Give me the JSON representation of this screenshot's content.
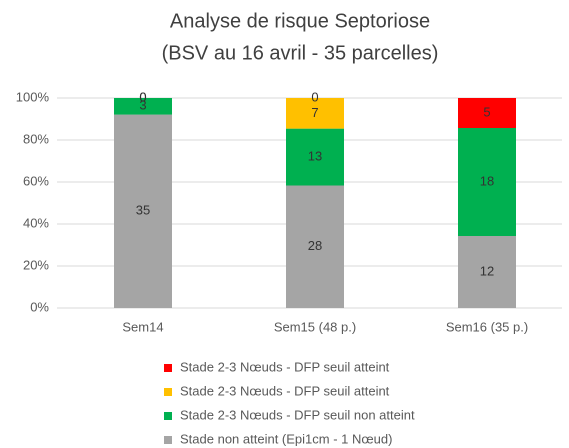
{
  "chart_data": {
    "type": "percent_stacked_bar",
    "title": "Analyse de risque Septoriose",
    "subtitle": "(BSV au 16 avril - 35 parcelles)",
    "categories": [
      "Sem14",
      "Sem15 (48 p.)",
      "Sem16 (35 p.)"
    ],
    "series": [
      {
        "name": "Stade non atteint (Epi1cm - 1 Nœud)",
        "color": "#a5a5a5",
        "values": [
          35,
          28,
          12
        ]
      },
      {
        "name": "Stade 2-3 Nœuds - DFP seuil non atteint",
        "color": "#00b050",
        "values": [
          3,
          13,
          18
        ]
      },
      {
        "name": "Stade 2-3 Nœuds - DFP seuil atteint",
        "color": "#ffc000",
        "values": [
          0,
          7,
          null
        ]
      },
      {
        "name": "Stade 2-3 Nœuds - DFP seuil atteint",
        "color": "#ff0000",
        "values": [
          0,
          0,
          5
        ]
      }
    ],
    "ylim": [
      0,
      100
    ],
    "yticks": [
      {
        "value": 0,
        "label": "0%"
      },
      {
        "value": 20,
        "label": "20%"
      },
      {
        "value": 40,
        "label": "40%"
      },
      {
        "value": 60,
        "label": "60%"
      },
      {
        "value": 80,
        "label": "80%"
      },
      {
        "value": 100,
        "label": "100%"
      }
    ],
    "grid": true,
    "legend": "bottom"
  }
}
